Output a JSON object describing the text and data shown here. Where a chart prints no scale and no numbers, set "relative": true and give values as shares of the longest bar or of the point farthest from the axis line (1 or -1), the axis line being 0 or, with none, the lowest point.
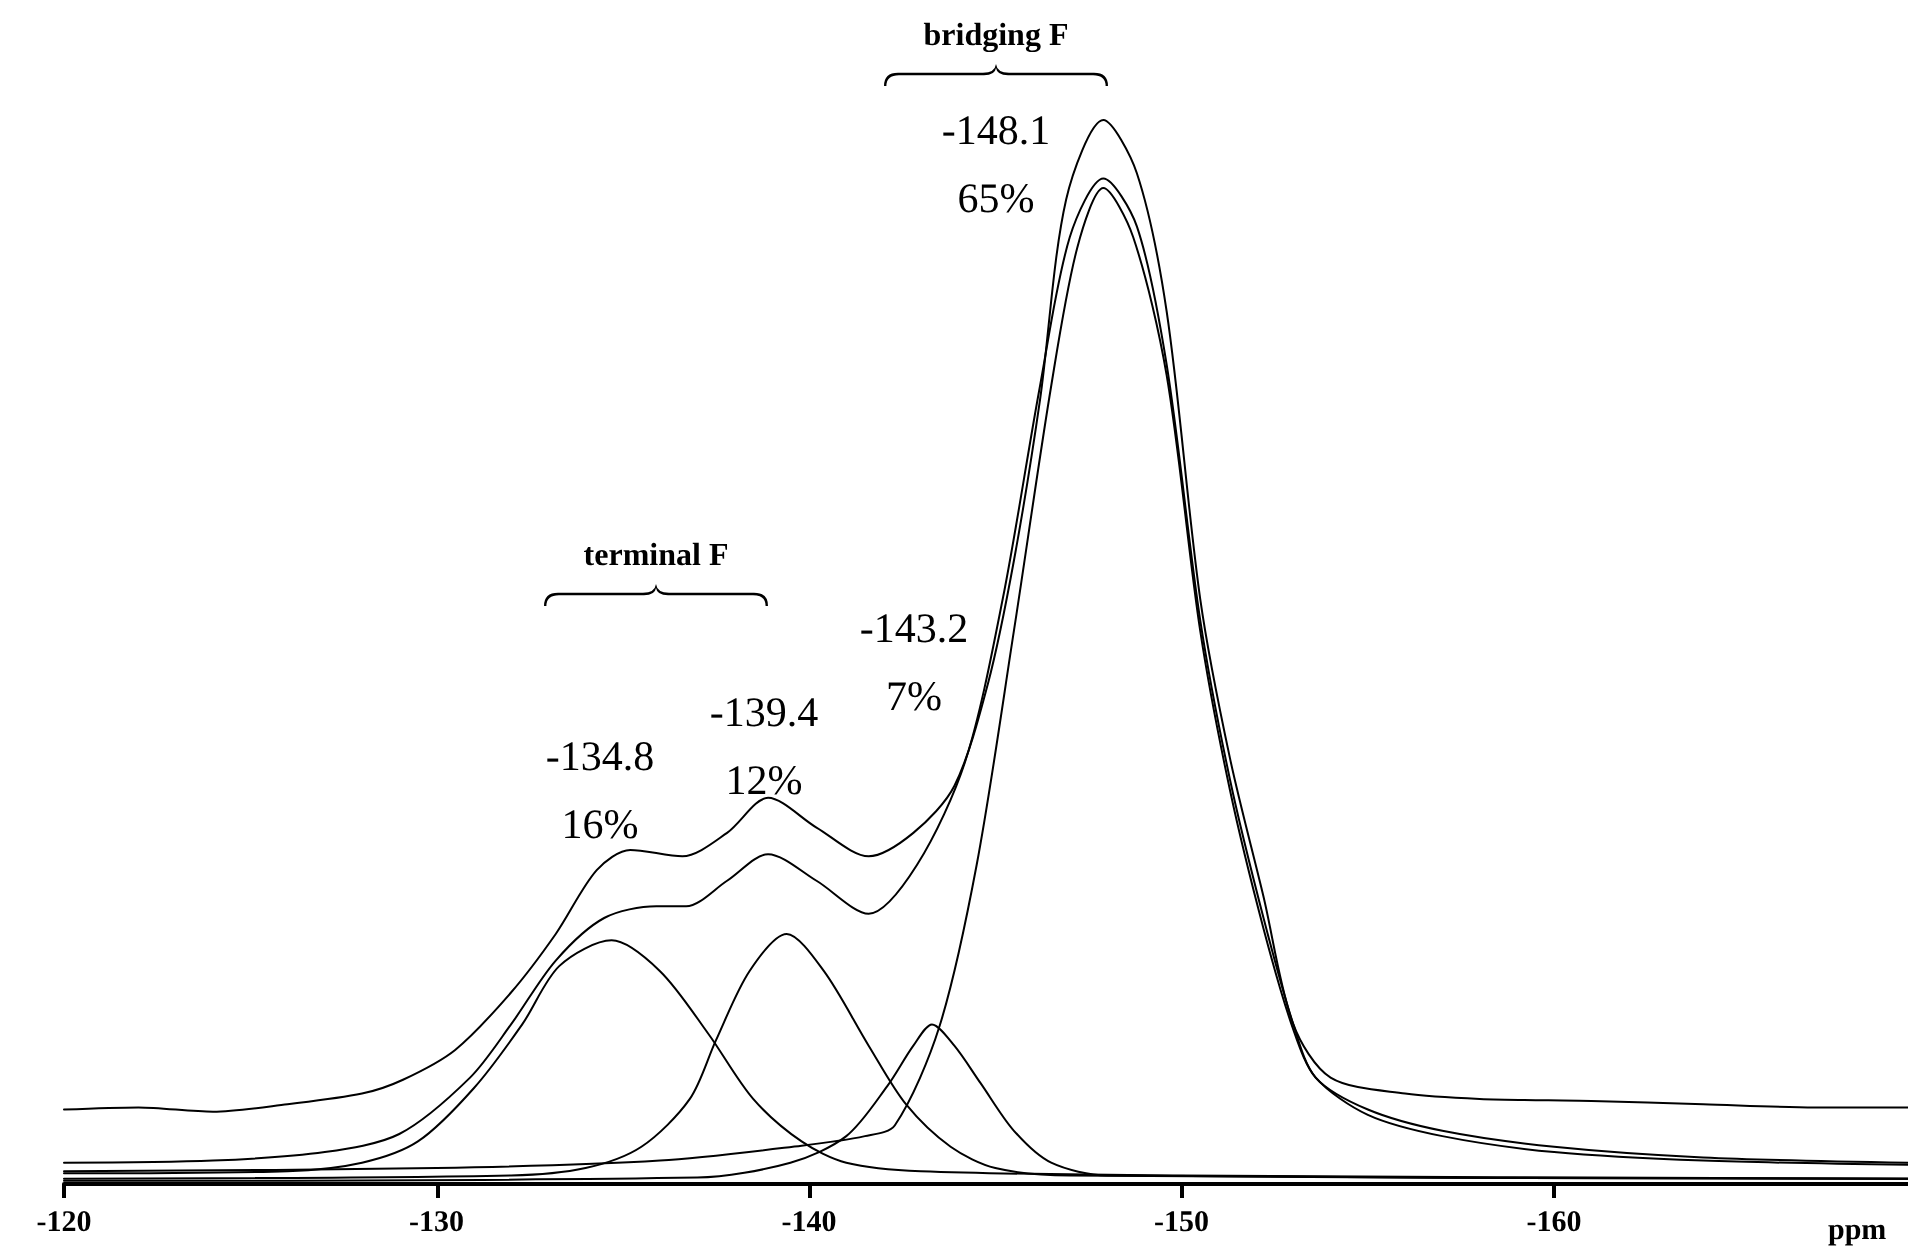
{
  "chart_data": {
    "type": "line",
    "relative": true,
    "xlabel": "ppm",
    "xlim": [
      -120,
      -169.5
    ],
    "xticks": [
      -120,
      -130,
      -140,
      -150,
      -160
    ],
    "marker": "none",
    "line_style": "solid",
    "tick_labels": "x",
    "series": [
      {
        "color": "#000000",
        "x": [
          -120,
          -122,
          -124,
          -126,
          -128,
          -129.1,
          -130.5,
          -132,
          -133.2,
          -134.3,
          -135.2,
          -136.6,
          -137.8,
          -138.9,
          -140.2,
          -141.6,
          -142.8,
          -143.9,
          -144.8,
          -145.5,
          -146.2,
          -146.9,
          -147.9,
          -148.8,
          -149.6,
          -150.5,
          -151.3,
          -152.2,
          -153,
          -154,
          -156,
          -158,
          -161,
          -164,
          -167,
          -169.5
        ],
        "values": [
          0.07,
          0.072,
          0.068,
          0.075,
          0.085,
          0.098,
          0.126,
          0.18,
          0.235,
          0.295,
          0.314,
          0.308,
          0.33,
          0.363,
          0.335,
          0.308,
          0.33,
          0.374,
          0.47,
          0.586,
          0.737,
          0.925,
          1.0,
          0.95,
          0.82,
          0.55,
          0.4,
          0.27,
          0.15,
          0.1,
          0.085,
          0.08,
          0.078,
          0.075,
          0.072,
          0.072
        ]
      },
      {
        "color": "#000000",
        "x": [
          -120,
          -124,
          -127,
          -129,
          -130.9,
          -132,
          -133.2,
          -134.5,
          -135.9,
          -136.7,
          -137.8,
          -138.9,
          -140.2,
          -141.6,
          -142.9,
          -144.2,
          -145.2,
          -146.2,
          -147,
          -147.9,
          -148.8,
          -149.6,
          -150.5,
          -151.3,
          -152.2,
          -153,
          -153.6,
          -155,
          -157,
          -160,
          -164,
          -169.5
        ],
        "values": [
          0.02,
          0.022,
          0.03,
          0.047,
          0.1,
          0.15,
          0.21,
          0.25,
          0.261,
          0.261,
          0.285,
          0.31,
          0.285,
          0.254,
          0.3,
          0.398,
          0.55,
          0.75,
          0.89,
          0.945,
          0.9,
          0.77,
          0.53,
          0.38,
          0.25,
          0.15,
          0.1,
          0.07,
          0.05,
          0.035,
          0.025,
          0.02
        ]
      },
      {
        "color": "#000000",
        "x": [
          -120,
          -126,
          -128,
          -129.5,
          -131,
          -132.3,
          -133.3,
          -134.7,
          -136,
          -137.3,
          -138.5,
          -139.8,
          -141,
          -143,
          -150,
          -169.5
        ],
        "values": [
          0.01,
          0.012,
          0.02,
          0.04,
          0.09,
          0.15,
          0.205,
          0.229,
          0.2,
          0.141,
          0.08,
          0.04,
          0.02,
          0.012,
          0.008,
          0.005
        ]
      },
      {
        "color": "#000000",
        "x": [
          -120,
          -132,
          -134,
          -135.5,
          -136.8,
          -137.5,
          -138.4,
          -139.4,
          -140.4,
          -141.6,
          -142.6,
          -143.8,
          -145,
          -147,
          -169.5
        ],
        "values": [
          0.005,
          0.008,
          0.015,
          0.035,
          0.08,
          0.135,
          0.2,
          0.235,
          0.2,
          0.13,
          0.075,
          0.035,
          0.015,
          0.008,
          0.005
        ]
      },
      {
        "color": "#000000",
        "x": [
          -120,
          -137,
          -139.5,
          -141,
          -142.1,
          -142.8,
          -143.3,
          -143.9,
          -144.6,
          -145.5,
          -146.5,
          -148,
          -169.5
        ],
        "values": [
          0.003,
          0.006,
          0.02,
          0.045,
          0.092,
          0.13,
          0.15,
          0.13,
          0.095,
          0.05,
          0.02,
          0.008,
          0.005
        ]
      },
      {
        "color": "#000000",
        "x": [
          -120,
          -130,
          -136,
          -139.8,
          -141.5,
          -142.3,
          -143.5,
          -144.5,
          -145.5,
          -146.5,
          -147.2,
          -147.9,
          -148.7,
          -149.6,
          -150.5,
          -151.3,
          -152.2,
          -153,
          -153.6,
          -155,
          -157,
          -160,
          -164,
          -169.5
        ],
        "values": [
          0.012,
          0.015,
          0.022,
          0.036,
          0.045,
          0.055,
          0.148,
          0.3,
          0.52,
          0.75,
          0.88,
          0.936,
          0.89,
          0.76,
          0.52,
          0.37,
          0.24,
          0.145,
          0.1,
          0.065,
          0.045,
          0.03,
          0.022,
          0.018
        ]
      }
    ],
    "annotations": [
      "bridging F",
      "-148.1\n65%",
      "terminal F",
      "-143.2\n7%",
      "-139.4\n12%",
      "-134.8\n16%"
    ]
  }
}
